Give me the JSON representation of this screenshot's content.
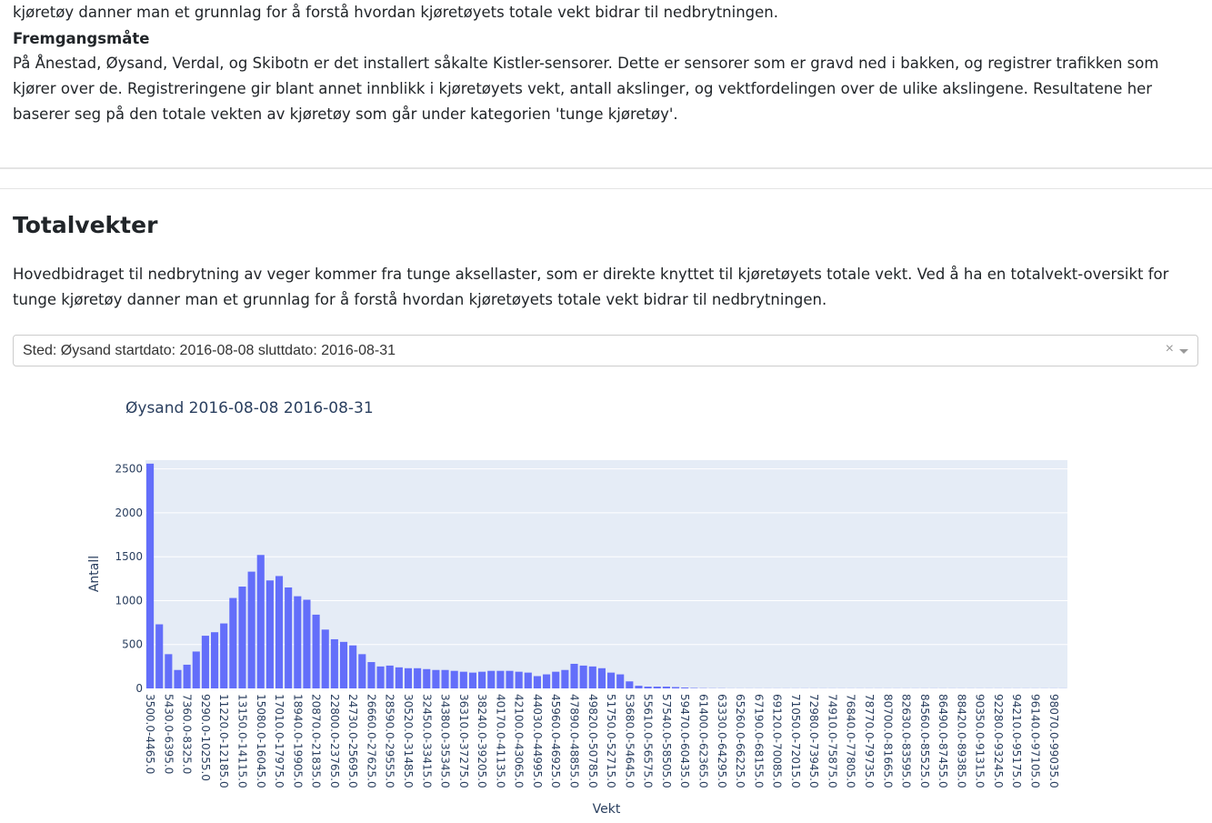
{
  "intro": {
    "last_line": "kjøretøy danner man et grunnlag for å forstå hvordan kjøretøyets totale vekt bidrar til nedbrytningen."
  },
  "procedure": {
    "title": "Fremgangsmåte",
    "text": "På Ånestad, Øysand, Verdal, og Skibotn er det installert såkalte Kistler-sensorer. Dette er sensorer som er gravd ned i bakken, og registrer trafikken som kjører over de. Registreringene gir blant annet innblikk i kjøretøyets vekt, antall akslinger, og vektfordelingen over de ulike akslingene. Resultatene her baserer seg på den totale vekten av kjøretøy som går under kategorien 'tunge kjøretøy'."
  },
  "section": {
    "title": "Totalvekter",
    "text": "Hovedbidraget til nedbrytning av veger kommer fra tunge aksellaster, som er direkte knyttet til kjøretøyets totale vekt. Ved å ha en totalvekt-oversikt for tunge kjøretøy danner man et grunnlag for å forstå hvordan kjøretøyets totale vekt bidrar til nedbrytningen."
  },
  "dropdown": {
    "value": "Sted: Øysand startdato: 2016-08-08 sluttdato: 2016-08-31",
    "clear_symbol": "×"
  },
  "colors": {
    "bar": "#636efa",
    "plot_bg": "#e5ecf6",
    "grid": "#ffffff",
    "axis_text": "#2a3f5f"
  },
  "chart_data": {
    "type": "bar",
    "title": "Øysand 2016-08-08 2016-08-31",
    "xlabel": "Vekt",
    "ylabel": "Antall",
    "ylim": [
      0,
      2600
    ],
    "yticks": [
      0,
      500,
      1000,
      1500,
      2000,
      2500
    ],
    "grid": true,
    "bin_start": 3500,
    "bin_width": 965,
    "bin_count": 100,
    "values": [
      2560,
      730,
      390,
      210,
      270,
      420,
      600,
      640,
      740,
      1030,
      1160,
      1330,
      1520,
      1230,
      1280,
      1150,
      1050,
      1010,
      840,
      670,
      560,
      530,
      490,
      390,
      300,
      250,
      260,
      240,
      230,
      230,
      220,
      210,
      210,
      200,
      190,
      180,
      190,
      200,
      200,
      200,
      190,
      180,
      140,
      160,
      190,
      210,
      280,
      260,
      250,
      230,
      180,
      160,
      80,
      30,
      20,
      20,
      20,
      15,
      10,
      5,
      3,
      2,
      2,
      1,
      1,
      1,
      1,
      1,
      1,
      1,
      1,
      1,
      1,
      1,
      1,
      1,
      1,
      1,
      1,
      1,
      1,
      1,
      1,
      1,
      1,
      1,
      1,
      1,
      1,
      1,
      1,
      1,
      1,
      1,
      1,
      1,
      1,
      1,
      1,
      1
    ],
    "tick_labels": [
      "3500.0-4465.0",
      "5430.0-6395.0",
      "7360.0-8325.0",
      "9290.0-10255.0",
      "11220.0-12185.0",
      "13150.0-14115.0",
      "15080.0-16045.0",
      "17010.0-17975.0",
      "18940.0-19905.0",
      "20870.0-21835.0",
      "22800.0-23765.0",
      "24730.0-25695.0",
      "26660.0-27625.0",
      "28590.0-29555.0",
      "30520.0-31485.0",
      "32450.0-33415.0",
      "34380.0-35345.0",
      "36310.0-37275.0",
      "38240.0-39205.0",
      "40170.0-41135.0",
      "42100.0-43065.0",
      "44030.0-44995.0",
      "45960.0-46925.0",
      "47890.0-48855.0",
      "49820.0-50785.0",
      "51750.0-52715.0",
      "53680.0-54645.0",
      "55610.0-56575.0",
      "57540.0-58505.0",
      "59470.0-60435.0",
      "61400.0-62365.0",
      "63330.0-64295.0",
      "65260.0-66225.0",
      "67190.0-68155.0",
      "69120.0-70085.0",
      "71050.0-72015.0",
      "72980.0-73945.0",
      "74910.0-75875.0",
      "76840.0-77805.0",
      "78770.0-79735.0",
      "80700.0-81665.0",
      "82630.0-83595.0",
      "84560.0-85525.0",
      "86490.0-87455.0",
      "88420.0-89385.0",
      "90350.0-91315.0",
      "92280.0-93245.0",
      "94210.0-95175.0",
      "96140.0-97105.0",
      "98070.0-99035.0"
    ]
  }
}
